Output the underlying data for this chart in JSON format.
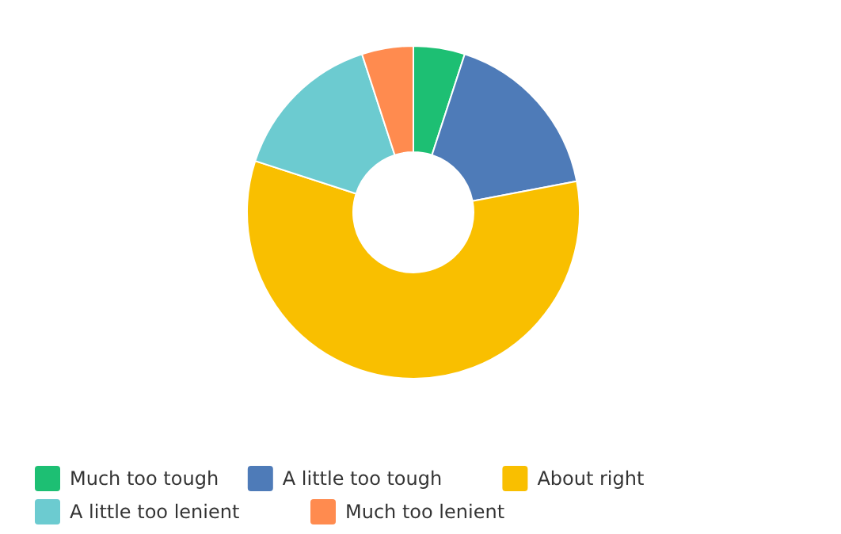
{
  "chart_data": {
    "type": "donut",
    "categories": [
      "Much too tough",
      "A little too tough",
      "About right",
      "A little too lenient",
      "Much too lenient"
    ],
    "values": [
      5,
      17,
      58,
      15,
      5
    ],
    "colors": [
      "#1dbf73",
      "#4e7bb8",
      "#f9bf00",
      "#6ccbd0",
      "#ff8b4f"
    ],
    "legend": "bottom"
  }
}
